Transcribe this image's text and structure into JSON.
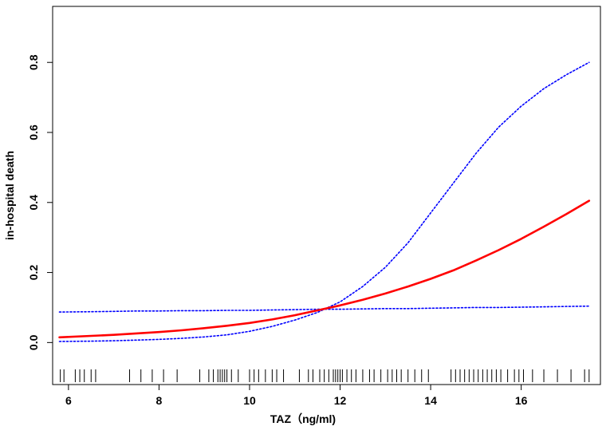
{
  "chart_data": {
    "type": "line",
    "title": "",
    "xlabel": "TAZ（ng/ml)",
    "ylabel": "in-hospital death",
    "xlim": [
      5.65,
      17.75
    ],
    "ylim": [
      -0.12,
      0.96
    ],
    "xticks": [
      6,
      8,
      10,
      12,
      14,
      16
    ],
    "xtick_labels": [
      "6",
      "8",
      "10",
      "12",
      "14",
      "16"
    ],
    "yticks": [
      0.0,
      0.2,
      0.4,
      0.6,
      0.8
    ],
    "ytick_labels": [
      "0.0",
      "0.2",
      "0.4",
      "0.6",
      "0.8"
    ],
    "grid": false,
    "legend": "none",
    "series": [
      {
        "style": "solid",
        "color": "#ff0000",
        "x": [
          5.8,
          6.5,
          7.0,
          7.5,
          8.0,
          8.5,
          9.0,
          9.5,
          10.0,
          10.5,
          11.0,
          11.5,
          12.0,
          12.5,
          13.0,
          13.5,
          14.0,
          14.5,
          15.0,
          15.5,
          16.0,
          16.5,
          17.0,
          17.5
        ],
        "y": [
          0.015,
          0.019,
          0.022,
          0.026,
          0.03,
          0.035,
          0.041,
          0.048,
          0.056,
          0.066,
          0.078,
          0.092,
          0.106,
          0.122,
          0.14,
          0.16,
          0.182,
          0.206,
          0.234,
          0.264,
          0.296,
          0.331,
          0.367,
          0.405
        ]
      },
      {
        "style": "dotted",
        "color": "#0000ff",
        "x": [
          5.8,
          6.5,
          7.0,
          7.5,
          8.0,
          8.5,
          9.0,
          9.5,
          10.0,
          10.5,
          11.0,
          11.5,
          12.0,
          12.5,
          13.0,
          13.5,
          14.0,
          14.5,
          15.0,
          15.5,
          16.0,
          16.5,
          17.0,
          17.5
        ],
        "y": [
          0.003,
          0.004,
          0.005,
          0.007,
          0.009,
          0.012,
          0.016,
          0.022,
          0.032,
          0.046,
          0.064,
          0.086,
          0.116,
          0.16,
          0.215,
          0.285,
          0.37,
          0.455,
          0.54,
          0.615,
          0.675,
          0.725,
          0.765,
          0.8
        ]
      },
      {
        "style": "dotted",
        "color": "#0000ff",
        "x": [
          5.8,
          6.5,
          7.0,
          7.5,
          8.0,
          8.5,
          9.0,
          9.5,
          10.0,
          10.5,
          11.0,
          11.5,
          12.0,
          12.5,
          13.0,
          13.5,
          14.0,
          14.5,
          15.0,
          15.5,
          16.0,
          16.5,
          17.0,
          17.5
        ],
        "y": [
          0.087,
          0.088,
          0.089,
          0.09,
          0.09,
          0.091,
          0.091,
          0.092,
          0.092,
          0.093,
          0.094,
          0.095,
          0.095,
          0.096,
          0.097,
          0.097,
          0.098,
          0.099,
          0.1,
          0.1,
          0.101,
          0.102,
          0.103,
          0.104
        ]
      }
    ],
    "rug_x": [
      5.82,
      5.9,
      6.15,
      6.25,
      6.35,
      6.5,
      6.6,
      7.35,
      7.6,
      7.85,
      8.1,
      8.4,
      8.9,
      9.1,
      9.2,
      9.3,
      9.35,
      9.4,
      9.45,
      9.5,
      9.6,
      9.75,
      10.0,
      10.1,
      10.2,
      10.35,
      10.5,
      10.6,
      10.75,
      11.1,
      11.3,
      11.4,
      11.55,
      11.65,
      11.75,
      11.85,
      11.9,
      11.95,
      12.0,
      12.05,
      12.15,
      12.25,
      12.35,
      12.5,
      12.65,
      12.75,
      12.9,
      13.05,
      13.15,
      13.25,
      13.35,
      13.5,
      13.65,
      13.8,
      13.95,
      14.45,
      14.55,
      14.65,
      14.75,
      14.85,
      14.95,
      15.05,
      15.15,
      15.25,
      15.35,
      15.45,
      15.55,
      15.7,
      15.85,
      15.95,
      16.05,
      16.25,
      16.5,
      16.8,
      17.1,
      17.4,
      17.5
    ]
  }
}
